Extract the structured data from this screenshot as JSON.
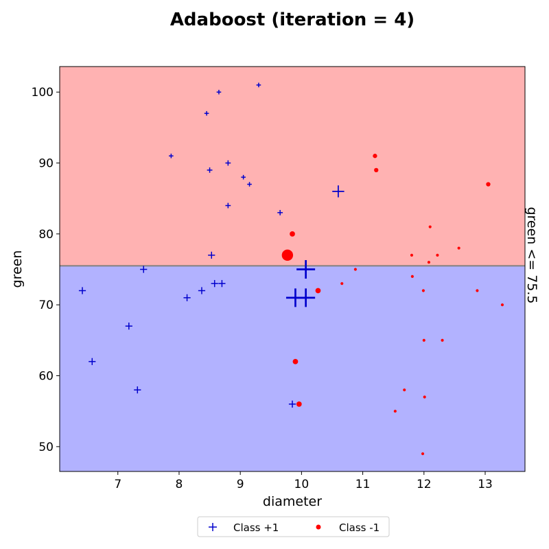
{
  "chart_data": {
    "type": "scatter",
    "title": "Adaboost (iteration = 4)",
    "xlabel": "diameter",
    "ylabel": "green",
    "xlim": [
      6.05,
      13.65
    ],
    "ylim": [
      46.5,
      103.6
    ],
    "xticks": [
      7,
      8,
      9,
      10,
      11,
      12,
      13
    ],
    "yticks": [
      50,
      60,
      70,
      80,
      90,
      100
    ],
    "grid": false,
    "legend_position": "bottom-center",
    "decision_boundary": {
      "feature": "green",
      "threshold": 75.5,
      "label": "green <= 75.5",
      "color_above": "#ffb2b2",
      "color_below": "#b2b2ff",
      "line_color": "#808080"
    },
    "series": [
      {
        "name": "Class +1",
        "marker": "plus",
        "color": "#0000cc",
        "points": [
          {
            "x": 9.3,
            "y": 101,
            "w": 0.3
          },
          {
            "x": 8.65,
            "y": 100,
            "w": 0.3
          },
          {
            "x": 8.45,
            "y": 97,
            "w": 0.3
          },
          {
            "x": 7.87,
            "y": 91,
            "w": 0.3
          },
          {
            "x": 8.5,
            "y": 89,
            "w": 0.4
          },
          {
            "x": 8.8,
            "y": 90,
            "w": 0.4
          },
          {
            "x": 9.05,
            "y": 88,
            "w": 0.3
          },
          {
            "x": 9.15,
            "y": 87,
            "w": 0.3
          },
          {
            "x": 8.8,
            "y": 84,
            "w": 0.4
          },
          {
            "x": 9.65,
            "y": 83,
            "w": 0.4
          },
          {
            "x": 10.6,
            "y": 86,
            "w": 1.2
          },
          {
            "x": 8.53,
            "y": 77,
            "w": 0.6
          },
          {
            "x": 7.42,
            "y": 75,
            "w": 0.6
          },
          {
            "x": 6.42,
            "y": 72,
            "w": 0.6
          },
          {
            "x": 8.37,
            "y": 72,
            "w": 0.6
          },
          {
            "x": 8.58,
            "y": 73,
            "w": 0.6
          },
          {
            "x": 8.7,
            "y": 73,
            "w": 0.6
          },
          {
            "x": 8.13,
            "y": 71,
            "w": 0.6
          },
          {
            "x": 10.07,
            "y": 75,
            "w": 2.0
          },
          {
            "x": 9.9,
            "y": 71,
            "w": 2.0
          },
          {
            "x": 10.07,
            "y": 71,
            "w": 2.0
          },
          {
            "x": 7.18,
            "y": 67,
            "w": 0.6
          },
          {
            "x": 6.58,
            "y": 62,
            "w": 0.6
          },
          {
            "x": 7.32,
            "y": 58,
            "w": 0.6
          },
          {
            "x": 9.85,
            "y": 56,
            "w": 0.6
          }
        ]
      },
      {
        "name": "Class -1",
        "marker": "dot",
        "color": "#ff0000",
        "points": [
          {
            "x": 11.2,
            "y": 91,
            "w": 0.6
          },
          {
            "x": 11.22,
            "y": 89,
            "w": 0.6
          },
          {
            "x": 13.05,
            "y": 87,
            "w": 0.6
          },
          {
            "x": 9.85,
            "y": 80,
            "w": 0.8
          },
          {
            "x": 9.77,
            "y": 77,
            "w": 2.0
          },
          {
            "x": 12.1,
            "y": 81,
            "w": 0.3
          },
          {
            "x": 12.57,
            "y": 78,
            "w": 0.3
          },
          {
            "x": 11.8,
            "y": 77,
            "w": 0.3
          },
          {
            "x": 12.22,
            "y": 77,
            "w": 0.3
          },
          {
            "x": 12.08,
            "y": 76,
            "w": 0.3
          },
          {
            "x": 10.88,
            "y": 75,
            "w": 0.3
          },
          {
            "x": 11.81,
            "y": 74,
            "w": 0.3
          },
          {
            "x": 10.66,
            "y": 73,
            "w": 0.3
          },
          {
            "x": 10.27,
            "y": 72,
            "w": 0.8
          },
          {
            "x": 11.99,
            "y": 72,
            "w": 0.3
          },
          {
            "x": 12.87,
            "y": 72,
            "w": 0.3
          },
          {
            "x": 13.28,
            "y": 70,
            "w": 0.3
          },
          {
            "x": 12.0,
            "y": 65,
            "w": 0.3
          },
          {
            "x": 12.3,
            "y": 65,
            "w": 0.3
          },
          {
            "x": 9.9,
            "y": 62,
            "w": 0.8
          },
          {
            "x": 11.68,
            "y": 58,
            "w": 0.3
          },
          {
            "x": 12.01,
            "y": 57,
            "w": 0.3
          },
          {
            "x": 9.96,
            "y": 56,
            "w": 0.8
          },
          {
            "x": 11.53,
            "y": 55,
            "w": 0.3
          },
          {
            "x": 11.98,
            "y": 49,
            "w": 0.3
          }
        ]
      }
    ]
  }
}
